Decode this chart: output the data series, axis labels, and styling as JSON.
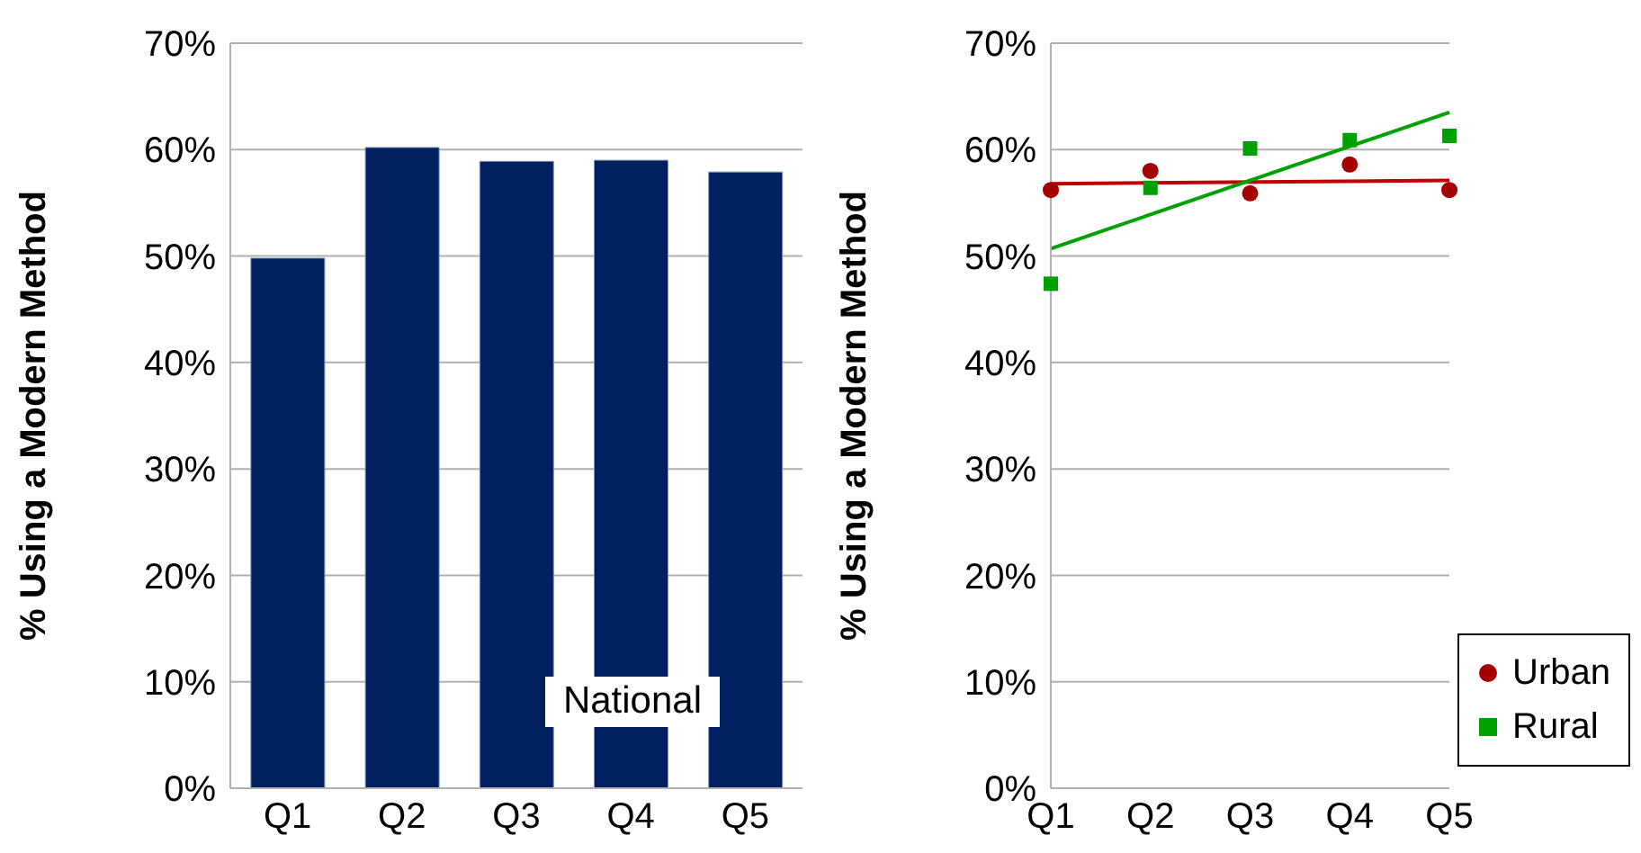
{
  "chart_data": [
    {
      "type": "bar",
      "ylabel": "% Using a Modern Method",
      "categories": [
        "Q1",
        "Q2",
        "Q3",
        "Q4",
        "Q5"
      ],
      "series": [
        {
          "color": "#002060",
          "values": [
            49.8,
            60.2,
            58.9,
            59.0,
            57.9
          ]
        }
      ],
      "ylim": [
        0,
        70
      ],
      "yticks": [
        {
          "value": 0,
          "label": "0%"
        },
        {
          "value": 10,
          "label": "10%"
        },
        {
          "value": 20,
          "label": "20%"
        },
        {
          "value": 30,
          "label": "30%"
        },
        {
          "value": 40,
          "label": "40%"
        },
        {
          "value": 50,
          "label": "50%"
        },
        {
          "value": 60,
          "label": "60%"
        },
        {
          "value": 70,
          "label": "70%"
        }
      ],
      "grid": "y",
      "annotations": [
        "National"
      ]
    },
    {
      "type": "scatter",
      "ylabel": "% Using a Modern Method",
      "categories": [
        "Q1",
        "Q2",
        "Q3",
        "Q4",
        "Q5"
      ],
      "series": [
        {
          "name": "Urban",
          "color": "#a50000",
          "marker": "circle",
          "values": [
            56.2,
            58.0,
            55.9,
            58.6,
            56.2
          ]
        },
        {
          "name": "Rural",
          "color": "#00a000",
          "marker": "square",
          "values": [
            47.4,
            56.4,
            60.1,
            60.9,
            61.3
          ]
        },
        {
          "type": "line",
          "color": "#c00000",
          "marker": "none",
          "values": [
            56.8,
            null,
            null,
            null,
            57.1
          ]
        },
        {
          "type": "line",
          "color": "#00a000",
          "marker": "none",
          "values": [
            50.7,
            null,
            null,
            null,
            63.5
          ]
        }
      ],
      "ylim": [
        0,
        70
      ],
      "yticks": [
        {
          "value": 0,
          "label": "0%"
        },
        {
          "value": 10,
          "label": "10%"
        },
        {
          "value": 20,
          "label": "20%"
        },
        {
          "value": 30,
          "label": "30%"
        },
        {
          "value": 40,
          "label": "40%"
        },
        {
          "value": 50,
          "label": "50%"
        },
        {
          "value": 60,
          "label": "60%"
        },
        {
          "value": 70,
          "label": "70%"
        }
      ],
      "grid": "y",
      "legend": "bottom right"
    }
  ]
}
